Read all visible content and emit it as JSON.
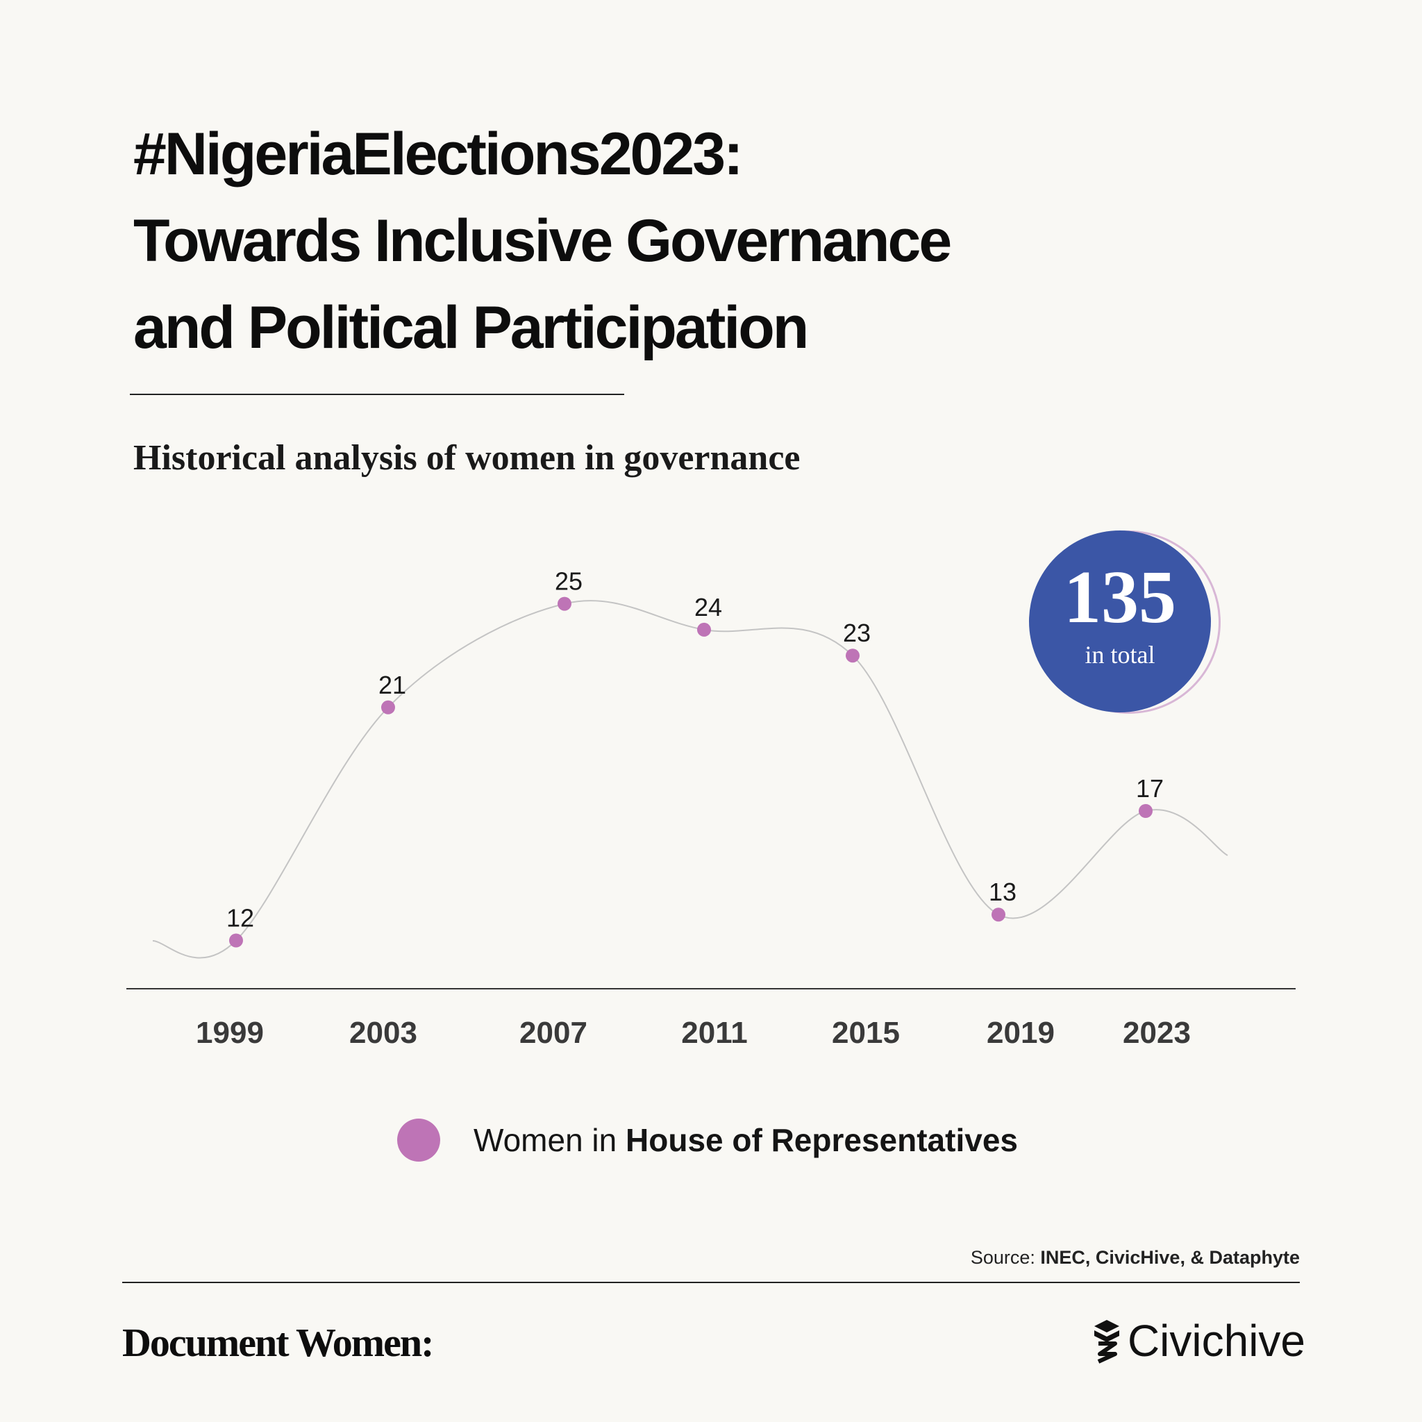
{
  "header": {
    "title_lines": [
      "#NigeriaElections2023:",
      "Towards Inclusive Governance",
      "and Political Participation"
    ],
    "subtitle": "Historical analysis of women in governance"
  },
  "badge": {
    "value": "135",
    "label": "in total"
  },
  "chart_data": {
    "type": "line",
    "categories": [
      "1999",
      "2003",
      "2007",
      "2011",
      "2015",
      "2019",
      "2023"
    ],
    "values": [
      12,
      21,
      25,
      24,
      23,
      13,
      17
    ],
    "series": [
      {
        "name": "Women in House of Representatives",
        "values": [
          12,
          21,
          25,
          24,
          23,
          13,
          17
        ]
      }
    ],
    "line_style": "smooth",
    "point_color": "#be74b6",
    "line_color": "#c4c4c4",
    "grid": false,
    "legend_position": "bottom-center"
  },
  "legend": {
    "prefix": "Women in ",
    "bold": "House of Representatives"
  },
  "source": {
    "prefix": "Source: ",
    "bold": "INEC, CivicHive, & Dataphyte"
  },
  "footer": {
    "left_brand": "Document Women:",
    "right_brand": "Civichive",
    "right_icon": "civichive-logo-icon"
  },
  "colors": {
    "background": "#f9f8f4",
    "accent_blue": "#3b56a6",
    "accent_pink": "#be74b6"
  }
}
